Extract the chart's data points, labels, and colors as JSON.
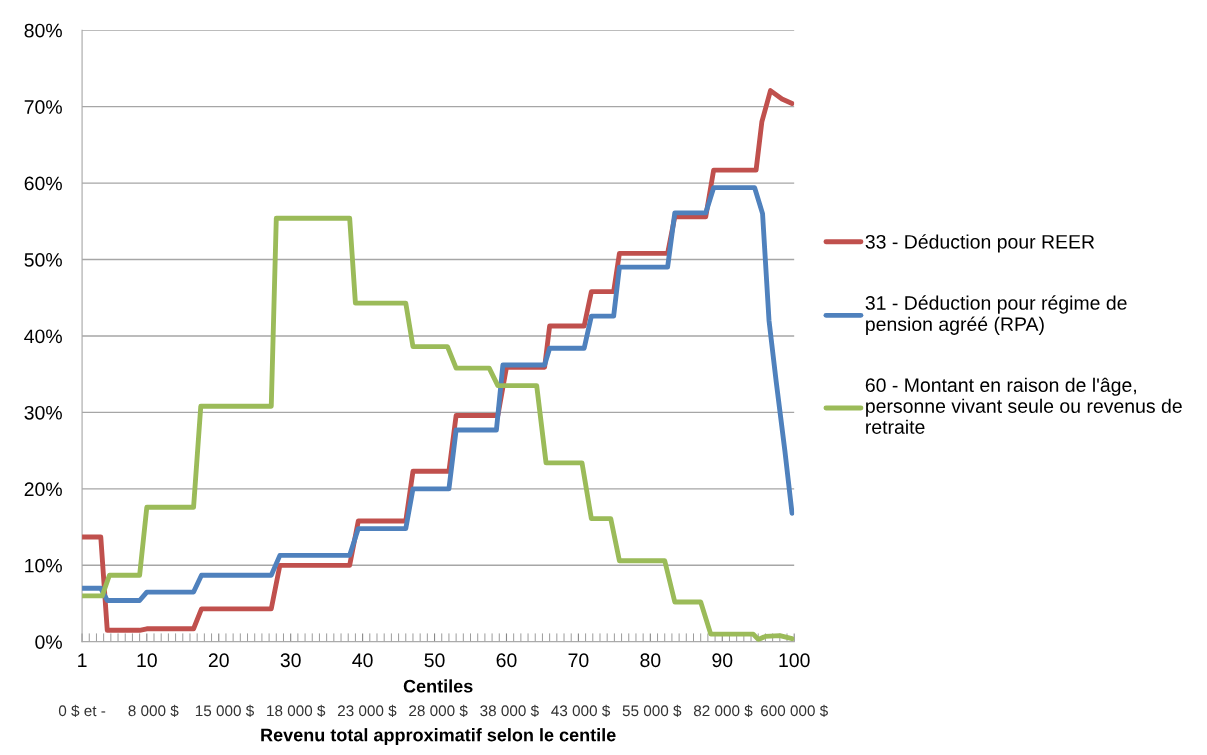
{
  "chart_data": {
    "type": "line",
    "xlabel": "Centiles",
    "annotations": [
      "0 $ et -",
      "8 000 $",
      "15 000 $",
      "18 000 $",
      "23 000 $",
      "28 000 $",
      "38 000 $",
      "43 000 $",
      "55 000 $",
      "82 000 $",
      "600 000 $",
      "Revenu total approximatif selon le centile"
    ],
    "xlim": [
      1,
      100
    ],
    "xticks": [
      1,
      10,
      20,
      30,
      40,
      50,
      60,
      70,
      80,
      90,
      100
    ],
    "ylim": [
      0,
      80
    ],
    "yticks": [
      {
        "value": 0,
        "label": "0%"
      },
      {
        "value": 10,
        "label": "10%"
      },
      {
        "value": 20,
        "label": "20%"
      },
      {
        "value": 30,
        "label": "30%"
      },
      {
        "value": 40,
        "label": "40%"
      },
      {
        "value": 50,
        "label": "50%"
      },
      {
        "value": 60,
        "label": "60%"
      },
      {
        "value": 70,
        "label": "70%"
      },
      {
        "value": 80,
        "label": "80%"
      }
    ],
    "grid": "y",
    "legend": "right",
    "marker": "none",
    "line_style": "solid",
    "series": [
      {
        "name": "33 - Déduction pour REER",
        "color": "#c0504d",
        "x": [
          1,
          3.6,
          4.5,
          9,
          10,
          16.5,
          17.6,
          27.3,
          28.5,
          38.2,
          39.4,
          46,
          47,
          52,
          53,
          58.8,
          60,
          65.3,
          66,
          70.8,
          71.8,
          74.9,
          75.7,
          82.4,
          83.4,
          87.7,
          88.8,
          94.7,
          95.5,
          96.7,
          98.3,
          99.7
        ],
        "values": [
          13.7,
          13.7,
          1.5,
          1.5,
          1.7,
          1.7,
          4.3,
          4.3,
          10,
          10,
          15.8,
          15.8,
          22.3,
          22.3,
          29.6,
          29.6,
          35.9,
          35.9,
          41.3,
          41.3,
          45.8,
          45.8,
          50.8,
          50.8,
          55.6,
          55.6,
          61.7,
          61.7,
          68,
          72.1,
          71,
          70.4
        ]
      },
      {
        "name": "31 - Déduction pour régime de pension agréé (RPA)",
        "color": "#4f81bd",
        "x": [
          1,
          3.6,
          4.5,
          9,
          10,
          16.5,
          17.6,
          27.3,
          28.5,
          38.2,
          39.4,
          46,
          47,
          52,
          53,
          58.6,
          59.5,
          65.3,
          66,
          70.8,
          71.8,
          74.9,
          75.7,
          82.4,
          83.4,
          87.7,
          88.8,
          94.5,
          95.6,
          96.5,
          97.5,
          98.7,
          99.7
        ],
        "values": [
          7,
          7,
          5.4,
          5.4,
          6.5,
          6.5,
          8.7,
          8.7,
          11.3,
          11.3,
          14.8,
          14.8,
          20,
          20,
          27.7,
          27.7,
          36.2,
          36.2,
          38.4,
          38.4,
          42.6,
          42.6,
          49,
          49,
          56.1,
          56.1,
          59.4,
          59.4,
          56,
          42,
          34,
          25,
          16.8
        ]
      },
      {
        "name": "60 - Montant en raison de l'âge, personne vivant seule ou revenus de retraite",
        "color": "#9bbb59",
        "x": [
          1,
          3.8,
          4.8,
          9,
          10,
          16.5,
          17.5,
          27.3,
          28,
          38.2,
          39,
          46,
          47,
          51.8,
          53,
          57.6,
          58.8,
          64.2,
          65.5,
          70.5,
          71.8,
          74.5,
          75.7,
          82,
          83.4,
          87,
          88.4,
          94.3,
          95,
          96,
          98,
          99.7
        ],
        "values": [
          6,
          6,
          8.7,
          8.7,
          17.6,
          17.6,
          30.8,
          30.8,
          55.4,
          55.4,
          44.3,
          44.3,
          38.6,
          38.6,
          35.8,
          35.8,
          33.5,
          33.5,
          23.4,
          23.4,
          16.1,
          16.1,
          10.6,
          10.6,
          5.2,
          5.2,
          1,
          1,
          0.3,
          0.7,
          0.8,
          0.4
        ]
      }
    ]
  }
}
